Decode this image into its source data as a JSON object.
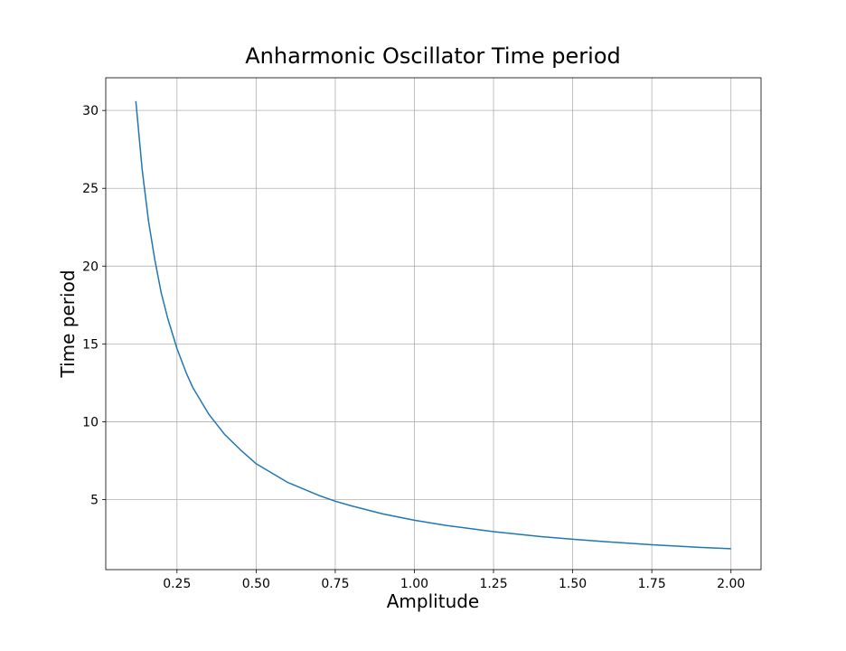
{
  "chart_data": {
    "type": "line",
    "title": "Anharmonic Oscillator Time period",
    "xlabel": "Amplitude",
    "ylabel": "Time period",
    "xlim": [
      0.025,
      2.095
    ],
    "ylim": [
      0.5,
      32.1
    ],
    "xticks": [
      0.25,
      0.5,
      0.75,
      1.0,
      1.25,
      1.5,
      1.75,
      2.0
    ],
    "xtick_labels": [
      "0.25",
      "0.50",
      "0.75",
      "1.00",
      "1.25",
      "1.50",
      "1.75",
      "2.00"
    ],
    "yticks": [
      5,
      10,
      15,
      20,
      25,
      30
    ],
    "ytick_labels": [
      "5",
      "10",
      "15",
      "20",
      "25",
      "30"
    ],
    "grid": true,
    "series": [
      {
        "color": "#1f77b4",
        "x": [
          0.12,
          0.14,
          0.16,
          0.18,
          0.2,
          0.22,
          0.25,
          0.28,
          0.3,
          0.35,
          0.4,
          0.45,
          0.5,
          0.6,
          0.7,
          0.75,
          0.8,
          0.9,
          1.0,
          1.1,
          1.25,
          1.4,
          1.5,
          1.6,
          1.75,
          1.9,
          2.0
        ],
        "y": [
          30.6,
          26.2,
          22.9,
          20.4,
          18.3,
          16.7,
          14.7,
          13.1,
          12.2,
          10.5,
          9.2,
          8.2,
          7.3,
          6.1,
          5.25,
          4.9,
          4.6,
          4.08,
          3.67,
          3.34,
          2.94,
          2.62,
          2.45,
          2.3,
          2.1,
          1.93,
          1.84
        ]
      }
    ]
  }
}
